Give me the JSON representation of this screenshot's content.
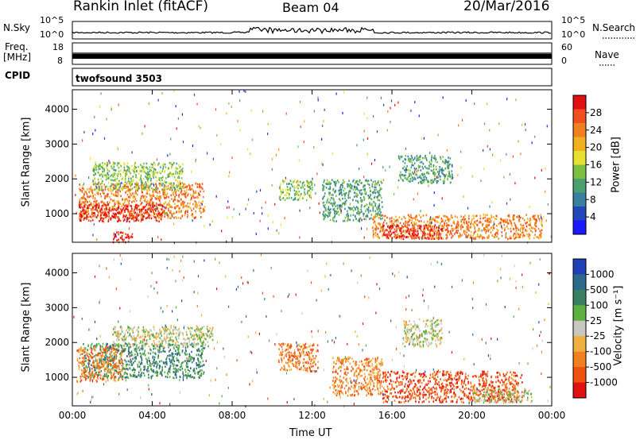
{
  "header": {
    "station": "Rankin Inlet (fitACF)",
    "beam": "Beam 04",
    "date": "20/Mar/2016"
  },
  "top_panels": {
    "nsky_label": "N.Sky",
    "nsky_ticks": [
      "10^5",
      "10^0"
    ],
    "nsearch_label": "N.Search",
    "nsearch_ticks": [
      "10^5",
      "10^0"
    ],
    "freq_label_1": "Freq.",
    "freq_label_2": "[MHz]",
    "freq_ticks": [
      "18",
      "8"
    ],
    "nave_label": "Nave",
    "nave_ticks": [
      "60",
      "0"
    ],
    "cpid_label": "CPID",
    "cpid_value": "twofsound 3503"
  },
  "chart_data": [
    {
      "type": "heatmap",
      "name": "power",
      "ylabel": "Slant Range [km]",
      "xlabel": "",
      "y_ticks": [
        "1000",
        "2000",
        "3000",
        "4000"
      ],
      "ylim": [
        180,
        4560
      ],
      "xlim_hours": [
        0,
        24
      ],
      "colorbar_label": "Power [dB]",
      "colorbar_ticks": [
        "4",
        "8",
        "12",
        "16",
        "20",
        "24",
        "28"
      ],
      "colorbar_colors": [
        "#1a1aff",
        "#2447b8",
        "#3a7fa0",
        "#4aa070",
        "#7cc040",
        "#e8e030",
        "#f0b020",
        "#f08020",
        "#f05020",
        "#e01010"
      ],
      "blobs": [
        {
          "t0": 0.3,
          "t1": 6.6,
          "r0": 900,
          "r1": 1900,
          "level": 7
        },
        {
          "t0": 0.3,
          "t1": 4.5,
          "r0": 800,
          "r1": 1300,
          "level": 9
        },
        {
          "t0": 1.0,
          "t1": 5.5,
          "r0": 1700,
          "r1": 2500,
          "level": 4
        },
        {
          "t0": 10.3,
          "t1": 12.0,
          "r0": 1400,
          "r1": 2000,
          "level": 4
        },
        {
          "t0": 15.0,
          "t1": 23.5,
          "r0": 300,
          "r1": 1000,
          "level": 7
        },
        {
          "t0": 15.5,
          "t1": 18.5,
          "r0": 300,
          "r1": 700,
          "level": 9
        },
        {
          "t0": 16.3,
          "t1": 19.0,
          "r0": 1900,
          "r1": 2700,
          "level": 3
        },
        {
          "t0": 12.5,
          "t1": 15.5,
          "r0": 800,
          "r1": 2000,
          "level": 3
        },
        {
          "t0": 2.0,
          "t1": 3.0,
          "r0": 200,
          "r1": 500,
          "level": 9
        }
      ]
    },
    {
      "type": "heatmap",
      "name": "velocity",
      "ylabel": "Slant Range [km]",
      "xlabel": "Time UT",
      "x_ticks": [
        "00:00",
        "04:00",
        "08:00",
        "12:00",
        "16:00",
        "20:00",
        "00:00"
      ],
      "y_ticks": [
        "1000",
        "2000",
        "3000",
        "4000"
      ],
      "ylim": [
        180,
        4560
      ],
      "xlim_hours": [
        0,
        24
      ],
      "colorbar_label": "Velocity [m s⁻¹]",
      "colorbar_ticks": [
        "1000",
        "500",
        "100",
        "25",
        "-25",
        "-100",
        "-500",
        "-1000"
      ],
      "colorbar_colors": [
        "#2040b8",
        "#2c6a8c",
        "#3a8060",
        "#5cb040",
        "#c8c8c0",
        "#f0b040",
        "#f08020",
        "#f05010",
        "#e01010"
      ],
      "blobs": [
        {
          "t0": 0.5,
          "t1": 6.6,
          "r0": 1000,
          "r1": 2000,
          "level": 2
        },
        {
          "t0": 0.2,
          "t1": 2.5,
          "r0": 900,
          "r1": 1900,
          "level": 6
        },
        {
          "t0": 2.0,
          "t1": 7.0,
          "r0": 1900,
          "r1": 2500,
          "level": 4
        },
        {
          "t0": 10.3,
          "t1": 12.3,
          "r0": 1200,
          "r1": 2000,
          "level": 6
        },
        {
          "t0": 15.5,
          "t1": 22.5,
          "r0": 300,
          "r1": 1200,
          "level": 7
        },
        {
          "t0": 16.5,
          "t1": 18.5,
          "r0": 1900,
          "r1": 2700,
          "level": 4
        },
        {
          "t0": 13.0,
          "t1": 15.5,
          "r0": 500,
          "r1": 1600,
          "level": 6
        },
        {
          "t0": 20.0,
          "t1": 23.0,
          "r0": 300,
          "r1": 700,
          "level": 4
        }
      ]
    }
  ]
}
